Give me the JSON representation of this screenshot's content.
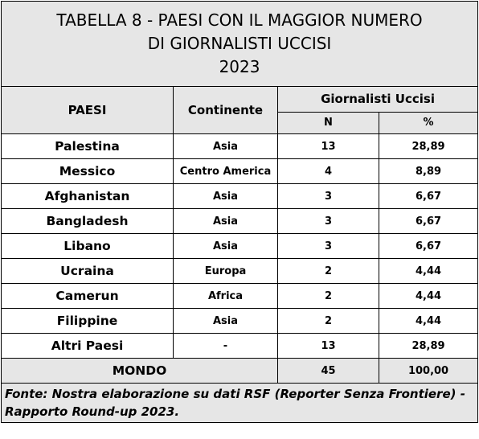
{
  "title": {
    "line1": "TABELLA 8 - PAESI CON IL MAGGIOR NUMERO",
    "line2": "DI GIORNALISTI UCCISI",
    "line3": "2023"
  },
  "headers": {
    "paesi": "PAESI",
    "continente": "Continente",
    "giornalisti": "Giornalisti Uccisi",
    "n": "N",
    "pct": "%"
  },
  "rows": [
    {
      "paese": "Palestina",
      "continente": "Asia",
      "n": "13",
      "pct": "28,89"
    },
    {
      "paese": "Messico",
      "continente": "Centro America",
      "n": "4",
      "pct": "8,89"
    },
    {
      "paese": "Afghanistan",
      "continente": "Asia",
      "n": "3",
      "pct": "6,67"
    },
    {
      "paese": "Bangladesh",
      "continente": "Asia",
      "n": "3",
      "pct": "6,67"
    },
    {
      "paese": "Libano",
      "continente": "Asia",
      "n": "3",
      "pct": "6,67"
    },
    {
      "paese": "Ucraina",
      "continente": "Europa",
      "n": "2",
      "pct": "4,44"
    },
    {
      "paese": "Camerun",
      "continente": "Africa",
      "n": "2",
      "pct": "4,44"
    },
    {
      "paese": "Filippine",
      "continente": "Asia",
      "n": "2",
      "pct": "4,44"
    },
    {
      "paese": "Altri Paesi",
      "continente": "-",
      "n": "13",
      "pct": "28,89"
    }
  ],
  "total": {
    "label": "MONDO",
    "n": "45",
    "pct": "100,00"
  },
  "footer": "Fonte: Nostra  elaborazione su dati RSF (Reporter Senza Frontiere) - Rapporto Round-up 2023."
}
